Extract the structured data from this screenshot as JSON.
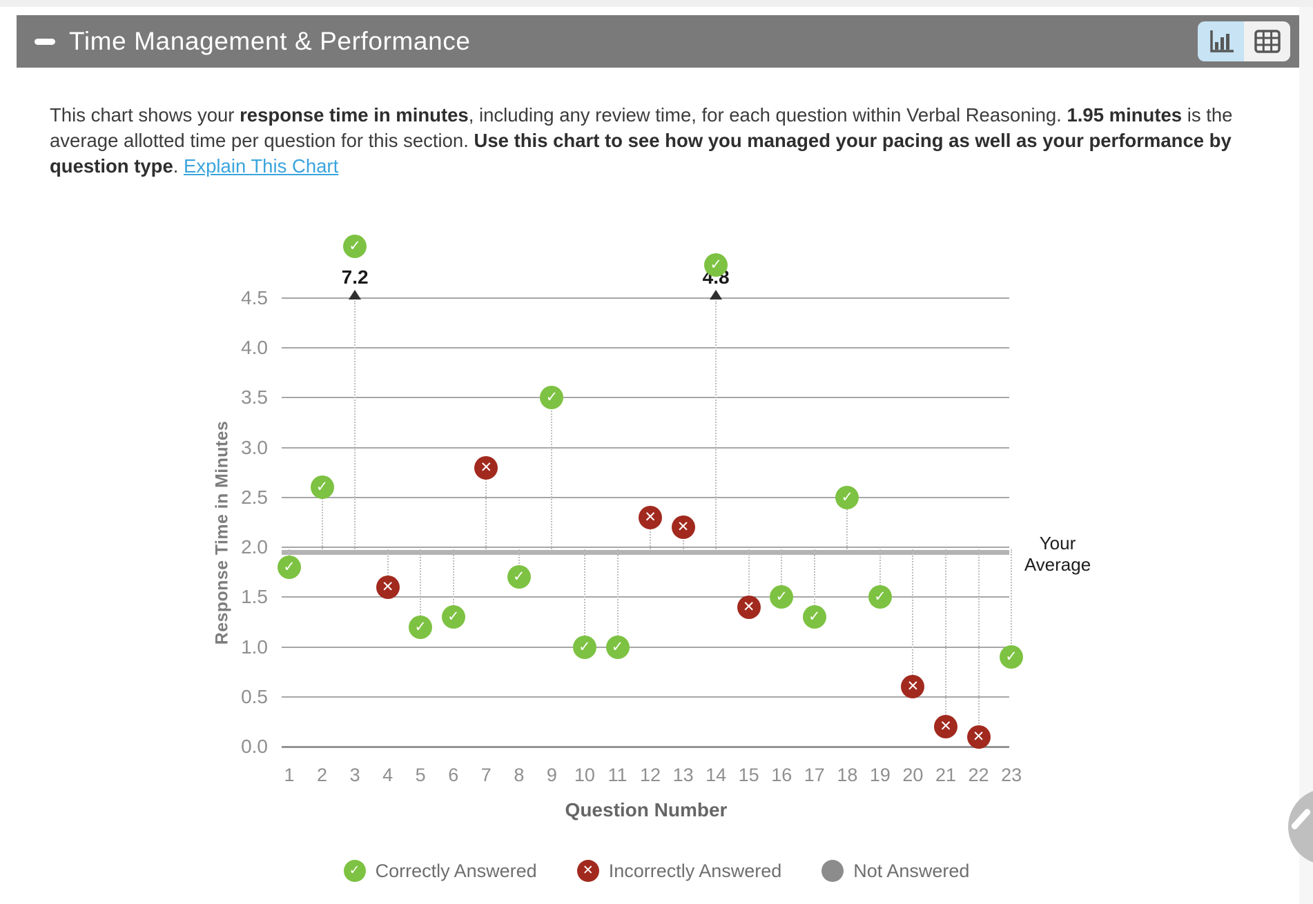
{
  "header": {
    "title": "Time Management & Performance",
    "collapse_symbol": "minus-dash",
    "view_toggle": {
      "chart_button_icon": "bar-chart-icon",
      "table_button_icon": "table-grid-icon",
      "active": "chart"
    }
  },
  "description": {
    "segments": [
      {
        "text": "This chart shows your ",
        "bold": false
      },
      {
        "text": "response time in minutes",
        "bold": true
      },
      {
        "text": ", including any review time, for each question within Verbal Reasoning. ",
        "bold": false
      },
      {
        "text": "1.95 minutes",
        "bold": true
      },
      {
        "text": " is the average allotted time per question for this section. ",
        "bold": false
      },
      {
        "text": "Use this chart to see how you managed your pacing as well as your performance by question type",
        "bold": true
      },
      {
        "text": ". ",
        "bold": false
      }
    ],
    "link_label": "Explain This Chart"
  },
  "chart_data": {
    "type": "scatter",
    "xlabel": "Question Number",
    "ylabel": "Response Time in Minutes",
    "ylim": [
      0,
      4.5
    ],
    "ytick_step": 0.5,
    "grid": true,
    "average": {
      "value": 1.95,
      "label": "Your Average"
    },
    "points": [
      {
        "q": 1,
        "minutes": 1.8,
        "status": "correct"
      },
      {
        "q": 2,
        "minutes": 2.6,
        "status": "correct"
      },
      {
        "q": 3,
        "minutes": 7.2,
        "status": "correct"
      },
      {
        "q": 4,
        "minutes": 1.6,
        "status": "incorrect"
      },
      {
        "q": 5,
        "minutes": 1.2,
        "status": "correct"
      },
      {
        "q": 6,
        "minutes": 1.3,
        "status": "correct"
      },
      {
        "q": 7,
        "minutes": 2.8,
        "status": "incorrect"
      },
      {
        "q": 8,
        "minutes": 1.7,
        "status": "correct"
      },
      {
        "q": 9,
        "minutes": 3.5,
        "status": "correct"
      },
      {
        "q": 10,
        "minutes": 1.0,
        "status": "correct"
      },
      {
        "q": 11,
        "minutes": 1.0,
        "status": "correct"
      },
      {
        "q": 12,
        "minutes": 2.3,
        "status": "incorrect"
      },
      {
        "q": 13,
        "minutes": 2.2,
        "status": "incorrect"
      },
      {
        "q": 14,
        "minutes": 4.8,
        "status": "correct"
      },
      {
        "q": 15,
        "minutes": 1.4,
        "status": "incorrect"
      },
      {
        "q": 16,
        "minutes": 1.5,
        "status": "correct"
      },
      {
        "q": 17,
        "minutes": 1.3,
        "status": "correct"
      },
      {
        "q": 18,
        "minutes": 2.5,
        "status": "correct"
      },
      {
        "q": 19,
        "minutes": 1.5,
        "status": "correct"
      },
      {
        "q": 20,
        "minutes": 0.6,
        "status": "incorrect"
      },
      {
        "q": 21,
        "minutes": 0.2,
        "status": "incorrect"
      },
      {
        "q": 22,
        "minutes": 0.1,
        "status": "incorrect"
      },
      {
        "q": 23,
        "minutes": 0.9,
        "status": "correct"
      }
    ],
    "legend": [
      {
        "label": "Correctly Answered",
        "status": "correct",
        "icon": "check-icon"
      },
      {
        "label": "Incorrectly Answered",
        "status": "incorrect",
        "icon": "x-icon"
      },
      {
        "label": "Not Answered",
        "status": "not_answered",
        "icon": "circle-icon"
      }
    ],
    "marker_glyphs": {
      "correct": "✓",
      "incorrect": "✕",
      "not_answered": ""
    }
  },
  "colors": {
    "correct": "#7dc242",
    "incorrect": "#a1291e",
    "not_answered": "#8c8c8c",
    "link": "#3aa4dd",
    "header_bg": "#7a7a7a",
    "toggle_active_bg": "#c7e3f4",
    "toggle_inactive_bg": "#f1f1f1",
    "average_line": "#b3b3b3"
  }
}
